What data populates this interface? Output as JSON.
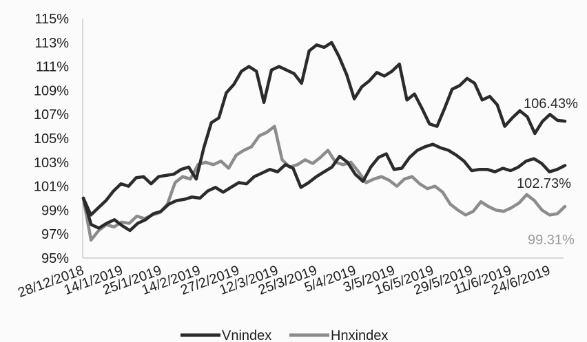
{
  "chart_data": {
    "type": "line",
    "ylim": [
      95,
      115
    ],
    "y_ticks": [
      "95%",
      "97%",
      "99%",
      "101%",
      "103%",
      "105%",
      "107%",
      "109%",
      "111%",
      "113%",
      "115%"
    ],
    "x_tick_labels": [
      "28/12/2018",
      "14/1/2019",
      "25/1/2019",
      "14/2/2019",
      "27/2/2019",
      "12/3/2019",
      "25/3/2019",
      "5/4/2019",
      "3/5/2019",
      "16/5/2019",
      "29/5/2019",
      "11/6/2019",
      "24/6/2019"
    ],
    "grid": false,
    "legend": "bottom",
    "series": [
      {
        "name": "Vnindex",
        "color": "#2b2b2b",
        "end_label": "106.43%",
        "values": [
          100.0,
          98.6,
          99.2,
          99.8,
          100.6,
          101.2,
          101.0,
          101.7,
          101.8,
          101.2,
          101.8,
          101.9,
          102.0,
          102.4,
          102.6,
          101.6,
          104.2,
          106.3,
          106.7,
          108.8,
          109.5,
          110.6,
          111.0,
          110.6,
          108.0,
          110.7,
          111.0,
          110.7,
          110.4,
          109.6,
          112.3,
          112.8,
          112.6,
          113.0,
          111.8,
          110.3,
          108.3,
          109.3,
          109.8,
          110.5,
          110.2,
          110.6,
          111.2,
          108.2,
          108.7,
          107.5,
          106.2,
          106.0,
          107.5,
          109.1,
          109.4,
          110.0,
          109.6,
          108.2,
          108.5,
          107.8,
          106.0,
          106.7,
          107.3,
          106.8,
          105.4,
          106.4,
          107.0,
          106.5,
          106.43
        ]
      },
      {
        "name": "Hnxindex",
        "color": "#8c8c8c",
        "end_label": "99.31%",
        "values": [
          100.0,
          96.5,
          97.3,
          97.8,
          97.6,
          98.0,
          97.9,
          98.5,
          98.3,
          98.6,
          98.8,
          99.5,
          101.3,
          101.8,
          101.6,
          102.8,
          103.0,
          102.8,
          103.1,
          102.5,
          103.6,
          104.0,
          104.3,
          105.2,
          105.5,
          106.0,
          103.2,
          102.6,
          102.8,
          103.2,
          102.9,
          103.4,
          104.0,
          103.0,
          102.8,
          103.0,
          102.2,
          101.3,
          101.6,
          101.8,
          101.5,
          101.0,
          101.6,
          101.8,
          101.2,
          100.8,
          101.0,
          100.5,
          99.5,
          99.0,
          98.6,
          98.9,
          99.7,
          99.3,
          99.0,
          98.9,
          99.2,
          99.6,
          100.3,
          99.8,
          99.0,
          98.6,
          98.7,
          99.31
        ]
      },
      {
        "name": "",
        "color": "#2b2b2b",
        "end_label": "102.73%",
        "values": [
          100.0,
          97.8,
          97.5,
          97.9,
          98.2,
          97.7,
          97.3,
          97.9,
          98.2,
          98.7,
          98.9,
          99.5,
          99.8,
          99.9,
          100.1,
          100.0,
          100.6,
          100.9,
          100.5,
          100.9,
          101.3,
          101.2,
          101.8,
          102.1,
          102.4,
          102.2,
          102.8,
          102.5,
          100.9,
          101.3,
          101.8,
          102.2,
          102.6,
          103.5,
          103.0,
          102.0,
          101.4,
          102.6,
          103.4,
          103.7,
          102.4,
          102.5,
          103.4,
          104.0,
          104.3,
          104.5,
          104.2,
          104.0,
          103.6,
          103.1,
          102.3,
          102.4,
          102.4,
          102.2,
          102.5,
          102.3,
          102.6,
          103.1,
          103.3,
          102.9,
          102.2,
          102.4,
          102.73
        ]
      }
    ]
  }
}
